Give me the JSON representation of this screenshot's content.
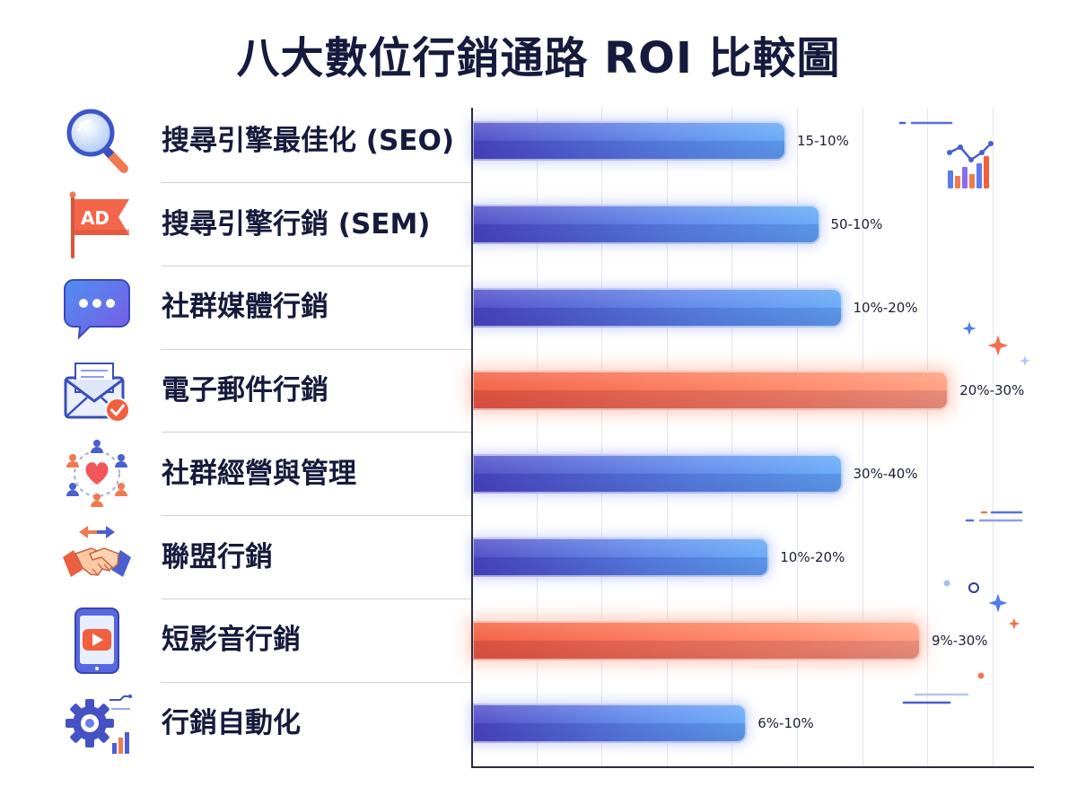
{
  "colors": {
    "title_text": "#161a3c",
    "label_text": "#161a3c",
    "blue_dark": "#4a47c5",
    "blue_mid": "#5a86ea",
    "blue_light": "#62a6f6",
    "orange_dark": "#f2593b",
    "orange_mid": "#ff8463",
    "orange_light": "#ff9b7c",
    "axis": "#2b2d3d",
    "grid": "#e4e6ef"
  },
  "icons": {
    "row_icons": [
      "search-icon",
      "ad-flag-icon",
      "chat-bubble-icon",
      "email-check-icon",
      "community-heart-icon",
      "handshake-icon",
      "video-phone-icon",
      "gear-automation-icon"
    ],
    "ad_flag_text": "AD",
    "decorations": [
      "trend-chart-icon",
      "sparkle-icon",
      "dash-lines-icon"
    ]
  },
  "chart_data": {
    "type": "bar",
    "orientation": "horizontal",
    "title": "八大數位行銷通路 ROI 比較圖",
    "categories": [
      "搜尋引擎最佳化 (SEO)",
      "搜尋引擎行銷 (SEM)",
      "社群媒體行銷",
      "電子郵件行銷",
      "社群經營與管理",
      "聯盟行銷",
      "短影音行銷",
      "行銷自動化"
    ],
    "values": [
      56,
      62,
      66,
      85,
      66,
      53,
      80,
      49
    ],
    "value_labels": [
      "15-10%",
      "50-10%",
      "10%-20%",
      "20%-30%",
      "30%-40%",
      "10%-20%",
      "9%-30%",
      "6%-10%"
    ],
    "bar_colors": [
      "blue",
      "blue",
      "blue",
      "orange",
      "blue",
      "blue",
      "orange",
      "blue"
    ],
    "xlim": [
      0,
      100
    ],
    "xlabel": "",
    "ylabel": "",
    "grid": true,
    "legend": "none"
  }
}
